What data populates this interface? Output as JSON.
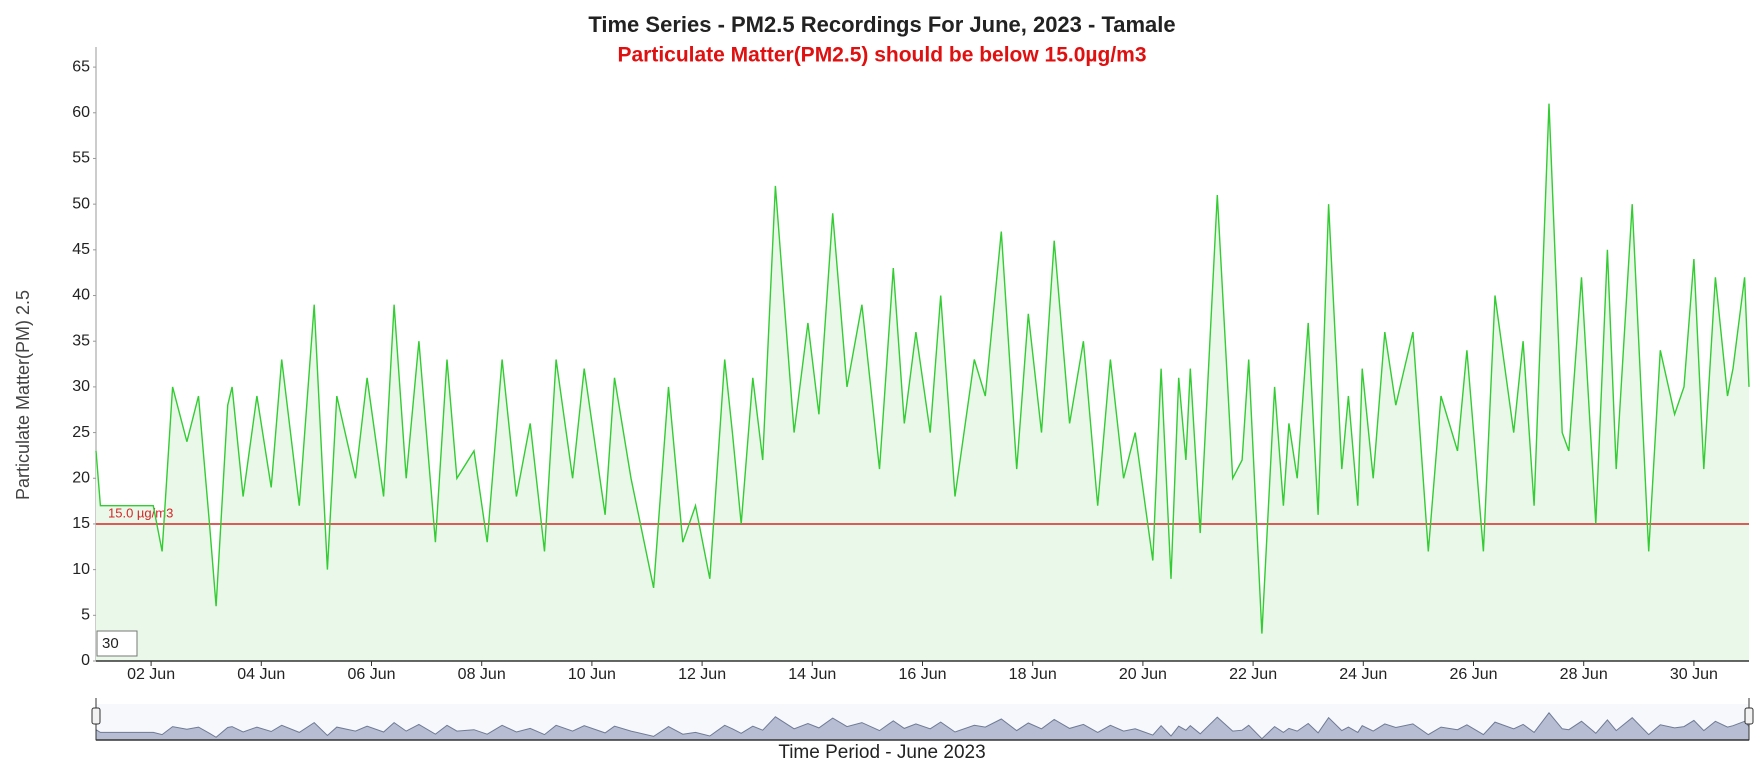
{
  "chart_data": {
    "type": "line",
    "title": "Time Series - PM2.5 Recordings For June, 2023 - Tamale",
    "subtitle": "Particulate Matter(PM2.5) should be below 15.0µg/m3",
    "y_label": "Particulate Matter(PM) 2.5",
    "x_label": "Time Period - June 2023",
    "range_input": "30",
    "threshold": {
      "value": 15,
      "label": "15.0 µg/m3",
      "color": "#d62728"
    },
    "xlim": [
      1,
      31
    ],
    "xticks": [
      {
        "value": 2,
        "label": "02 Jun"
      },
      {
        "value": 4,
        "label": "04 Jun"
      },
      {
        "value": 6,
        "label": "06 Jun"
      },
      {
        "value": 8,
        "label": "08 Jun"
      },
      {
        "value": 10,
        "label": "10 Jun"
      },
      {
        "value": 12,
        "label": "12 Jun"
      },
      {
        "value": 14,
        "label": "14 Jun"
      },
      {
        "value": 16,
        "label": "16 Jun"
      },
      {
        "value": 18,
        "label": "18 Jun"
      },
      {
        "value": 20,
        "label": "20 Jun"
      },
      {
        "value": 22,
        "label": "22 Jun"
      },
      {
        "value": 24,
        "label": "24 Jun"
      },
      {
        "value": 26,
        "label": "26 Jun"
      },
      {
        "value": 28,
        "label": "28 Jun"
      },
      {
        "value": 30,
        "label": "30 Jun"
      }
    ],
    "ylim": [
      0,
      67.2
    ],
    "yticks": [
      0,
      5,
      10,
      15,
      20,
      25,
      30,
      35,
      40,
      45,
      50,
      55,
      60,
      65
    ],
    "series": [
      {
        "color": "#33cc33",
        "fill": "#eaf8ea",
        "x": [
          1.0,
          1.08,
          2.04,
          2.2,
          2.39,
          2.65,
          2.86,
          3.06,
          3.18,
          3.39,
          3.47,
          3.67,
          3.92,
          4.18,
          4.37,
          4.69,
          4.96,
          5.2,
          5.37,
          5.71,
          5.92,
          6.22,
          6.41,
          6.63,
          6.86,
          7.16,
          7.37,
          7.55,
          7.86,
          8.1,
          8.37,
          8.63,
          8.88,
          9.14,
          9.35,
          9.65,
          9.86,
          10.24,
          10.41,
          10.71,
          11.12,
          11.39,
          11.65,
          11.88,
          12.14,
          12.41,
          12.55,
          12.71,
          12.92,
          13.1,
          13.33,
          13.67,
          13.92,
          14.12,
          14.37,
          14.63,
          14.9,
          15.22,
          15.47,
          15.67,
          15.88,
          16.14,
          16.33,
          16.59,
          16.94,
          17.14,
          17.43,
          17.71,
          17.92,
          18.16,
          18.39,
          18.67,
          18.92,
          19.18,
          19.41,
          19.65,
          19.86,
          20.18,
          20.33,
          20.51,
          20.65,
          20.78,
          20.86,
          21.04,
          21.35,
          21.63,
          21.8,
          21.92,
          22.16,
          22.39,
          22.55,
          22.65,
          22.8,
          23.0,
          23.18,
          23.37,
          23.61,
          23.73,
          23.9,
          23.98,
          24.18,
          24.39,
          24.59,
          24.9,
          25.18,
          25.41,
          25.71,
          25.88,
          26.18,
          26.39,
          26.73,
          26.9,
          27.1,
          27.37,
          27.61,
          27.73,
          27.96,
          28.22,
          28.43,
          28.59,
          28.88,
          29.18,
          29.39,
          29.65,
          29.82,
          30.0,
          30.18,
          30.39,
          30.61,
          30.71,
          30.92,
          31.0
        ],
        "values": [
          23,
          17,
          17,
          12,
          30,
          24,
          29,
          15,
          6,
          28,
          30,
          18,
          29,
          19,
          33,
          17,
          39,
          10,
          29,
          20,
          31,
          18,
          39,
          20,
          35,
          13,
          33,
          20,
          23,
          13,
          33,
          18,
          26,
          12,
          33,
          20,
          32,
          16,
          31,
          20,
          8,
          30,
          13,
          17,
          9,
          33,
          25,
          15,
          31,
          22,
          52,
          25,
          37,
          27,
          49,
          30,
          39,
          21,
          43,
          26,
          36,
          25,
          40,
          18,
          33,
          29,
          47,
          21,
          38,
          25,
          46,
          26,
          35,
          17,
          33,
          20,
          25,
          11,
          32,
          9,
          31,
          22,
          32,
          14,
          51,
          20,
          22,
          33,
          3,
          30,
          17,
          26,
          20,
          37,
          16,
          50,
          21,
          29,
          17,
          32,
          20,
          36,
          28,
          36,
          12,
          29,
          23,
          34,
          12,
          40,
          25,
          35,
          17,
          61,
          25,
          23,
          42,
          15,
          45,
          21,
          50,
          12,
          34,
          27,
          30,
          44,
          21,
          42,
          29,
          32,
          42,
          30
        ]
      }
    ]
  }
}
